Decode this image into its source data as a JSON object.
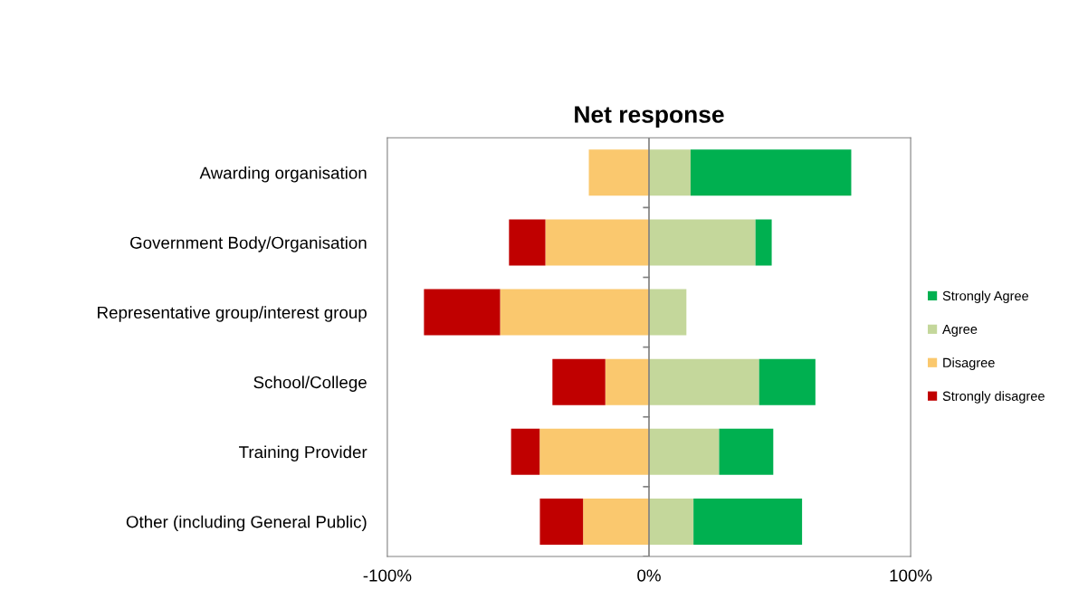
{
  "chart_data": {
    "type": "bar",
    "title": "Net response",
    "orientation": "horizontal",
    "stacked": true,
    "categories": [
      "Awarding organisation",
      "Government Body/Organisation",
      "Representative group/interest group",
      "School/College",
      "Training Provider",
      "Other (including General Public)"
    ],
    "series": [
      {
        "name": "Agree",
        "color": "#c4d79b",
        "values": [
          15.9,
          40.7,
          14.3,
          42.1,
          26.8,
          17.0
        ]
      },
      {
        "name": "Strongly Agree",
        "color": "#00b050",
        "values": [
          61.4,
          6.2,
          null,
          21.5,
          20.7,
          41.5
        ]
      },
      {
        "name": "Disagree",
        "color": "#fac86e",
        "values": [
          -23.0,
          -39.6,
          -56.9,
          -16.7,
          -41.8,
          -25.2
        ]
      },
      {
        "name": "Strongly disagree",
        "color": "#c00000",
        "values": [
          null,
          -13.9,
          -29.1,
          -20.2,
          -10.9,
          -16.5
        ]
      }
    ],
    "xlim": [
      -100,
      100
    ],
    "xticks": [
      {
        "value": -100,
        "label": "-100%"
      },
      {
        "value": 0,
        "label": "0%"
      },
      {
        "value": 100,
        "label": "100%"
      }
    ],
    "ref_lines": [
      {
        "axis": "x",
        "value": 0,
        "color": "#808080"
      }
    ],
    "grid": false,
    "legend": "right"
  }
}
